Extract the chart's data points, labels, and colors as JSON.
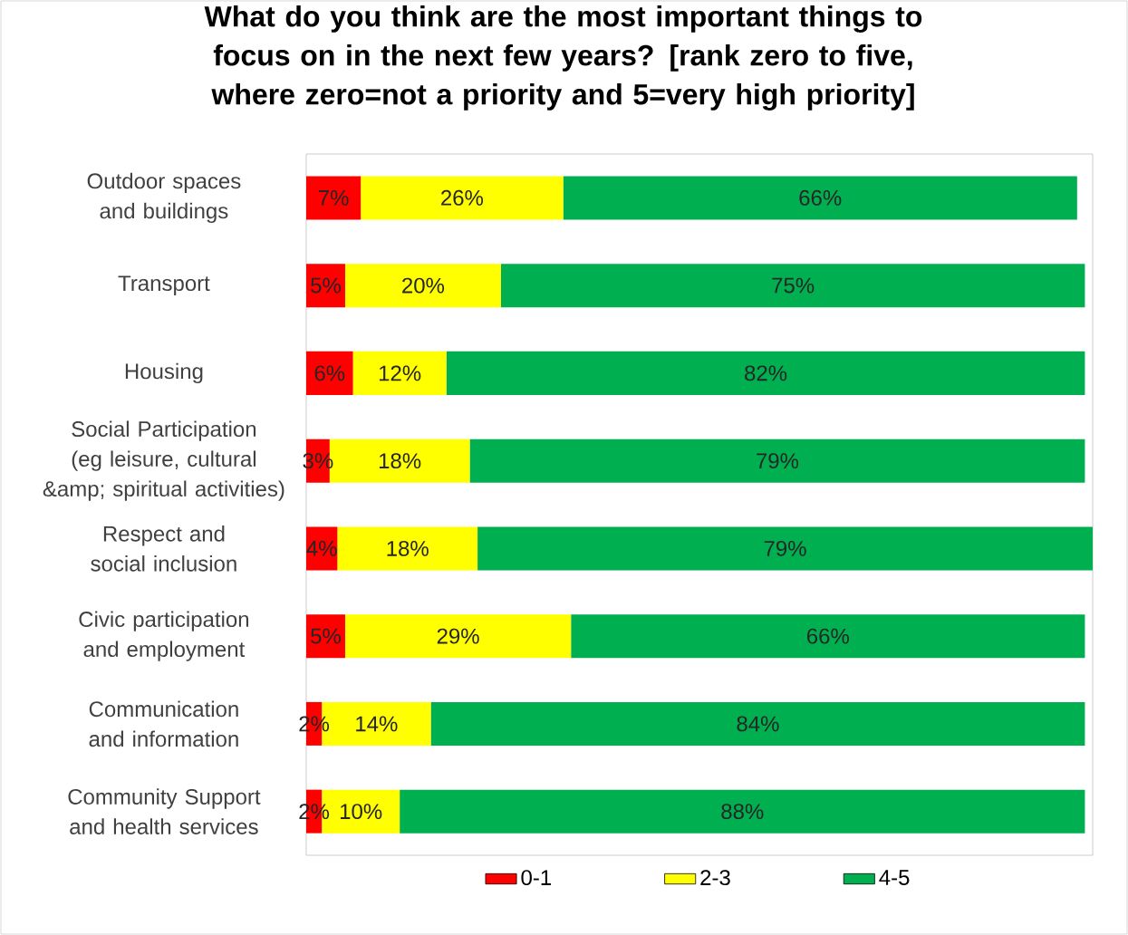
{
  "chart_data": {
    "type": "bar",
    "orientation": "horizontal",
    "stacked": true,
    "title": "What do you think are the most important things to focus on in the next few years? [rank zero to five, where zero=not a priority and 5=very high priority]",
    "categories": [
      "Outdoor spaces and buildings",
      "Transport",
      "Housing",
      "Social Participation (eg leisure, cultural &amp; spiritual activities)",
      "Respect and social inclusion",
      "Civic participation and employment",
      "Communication and information",
      "Community Support and health services"
    ],
    "xlim": [
      0,
      101
    ],
    "legend": "bottom",
    "series": [
      {
        "name": "0-1",
        "color": "#ff0000",
        "values": [
          7,
          5,
          6,
          3,
          4,
          5,
          2,
          2
        ],
        "value_labels": [
          "7%",
          "5%",
          "6%",
          "3%",
          "4%",
          "5%",
          "2%",
          "2%"
        ]
      },
      {
        "name": "2-3",
        "color": "#ffff00",
        "values": [
          26,
          20,
          12,
          18,
          18,
          29,
          14,
          10
        ],
        "value_labels": [
          "26%",
          "20%",
          "12%",
          "18%",
          "18%",
          "29%",
          "14%",
          "10%"
        ]
      },
      {
        "name": "4-5",
        "color": "#00b050",
        "values": [
          66,
          75,
          82,
          79,
          79,
          66,
          84,
          88
        ],
        "value_labels": [
          "66%",
          "75%",
          "82%",
          "79%",
          "79%",
          "66%",
          "84%",
          "88%"
        ]
      }
    ]
  }
}
